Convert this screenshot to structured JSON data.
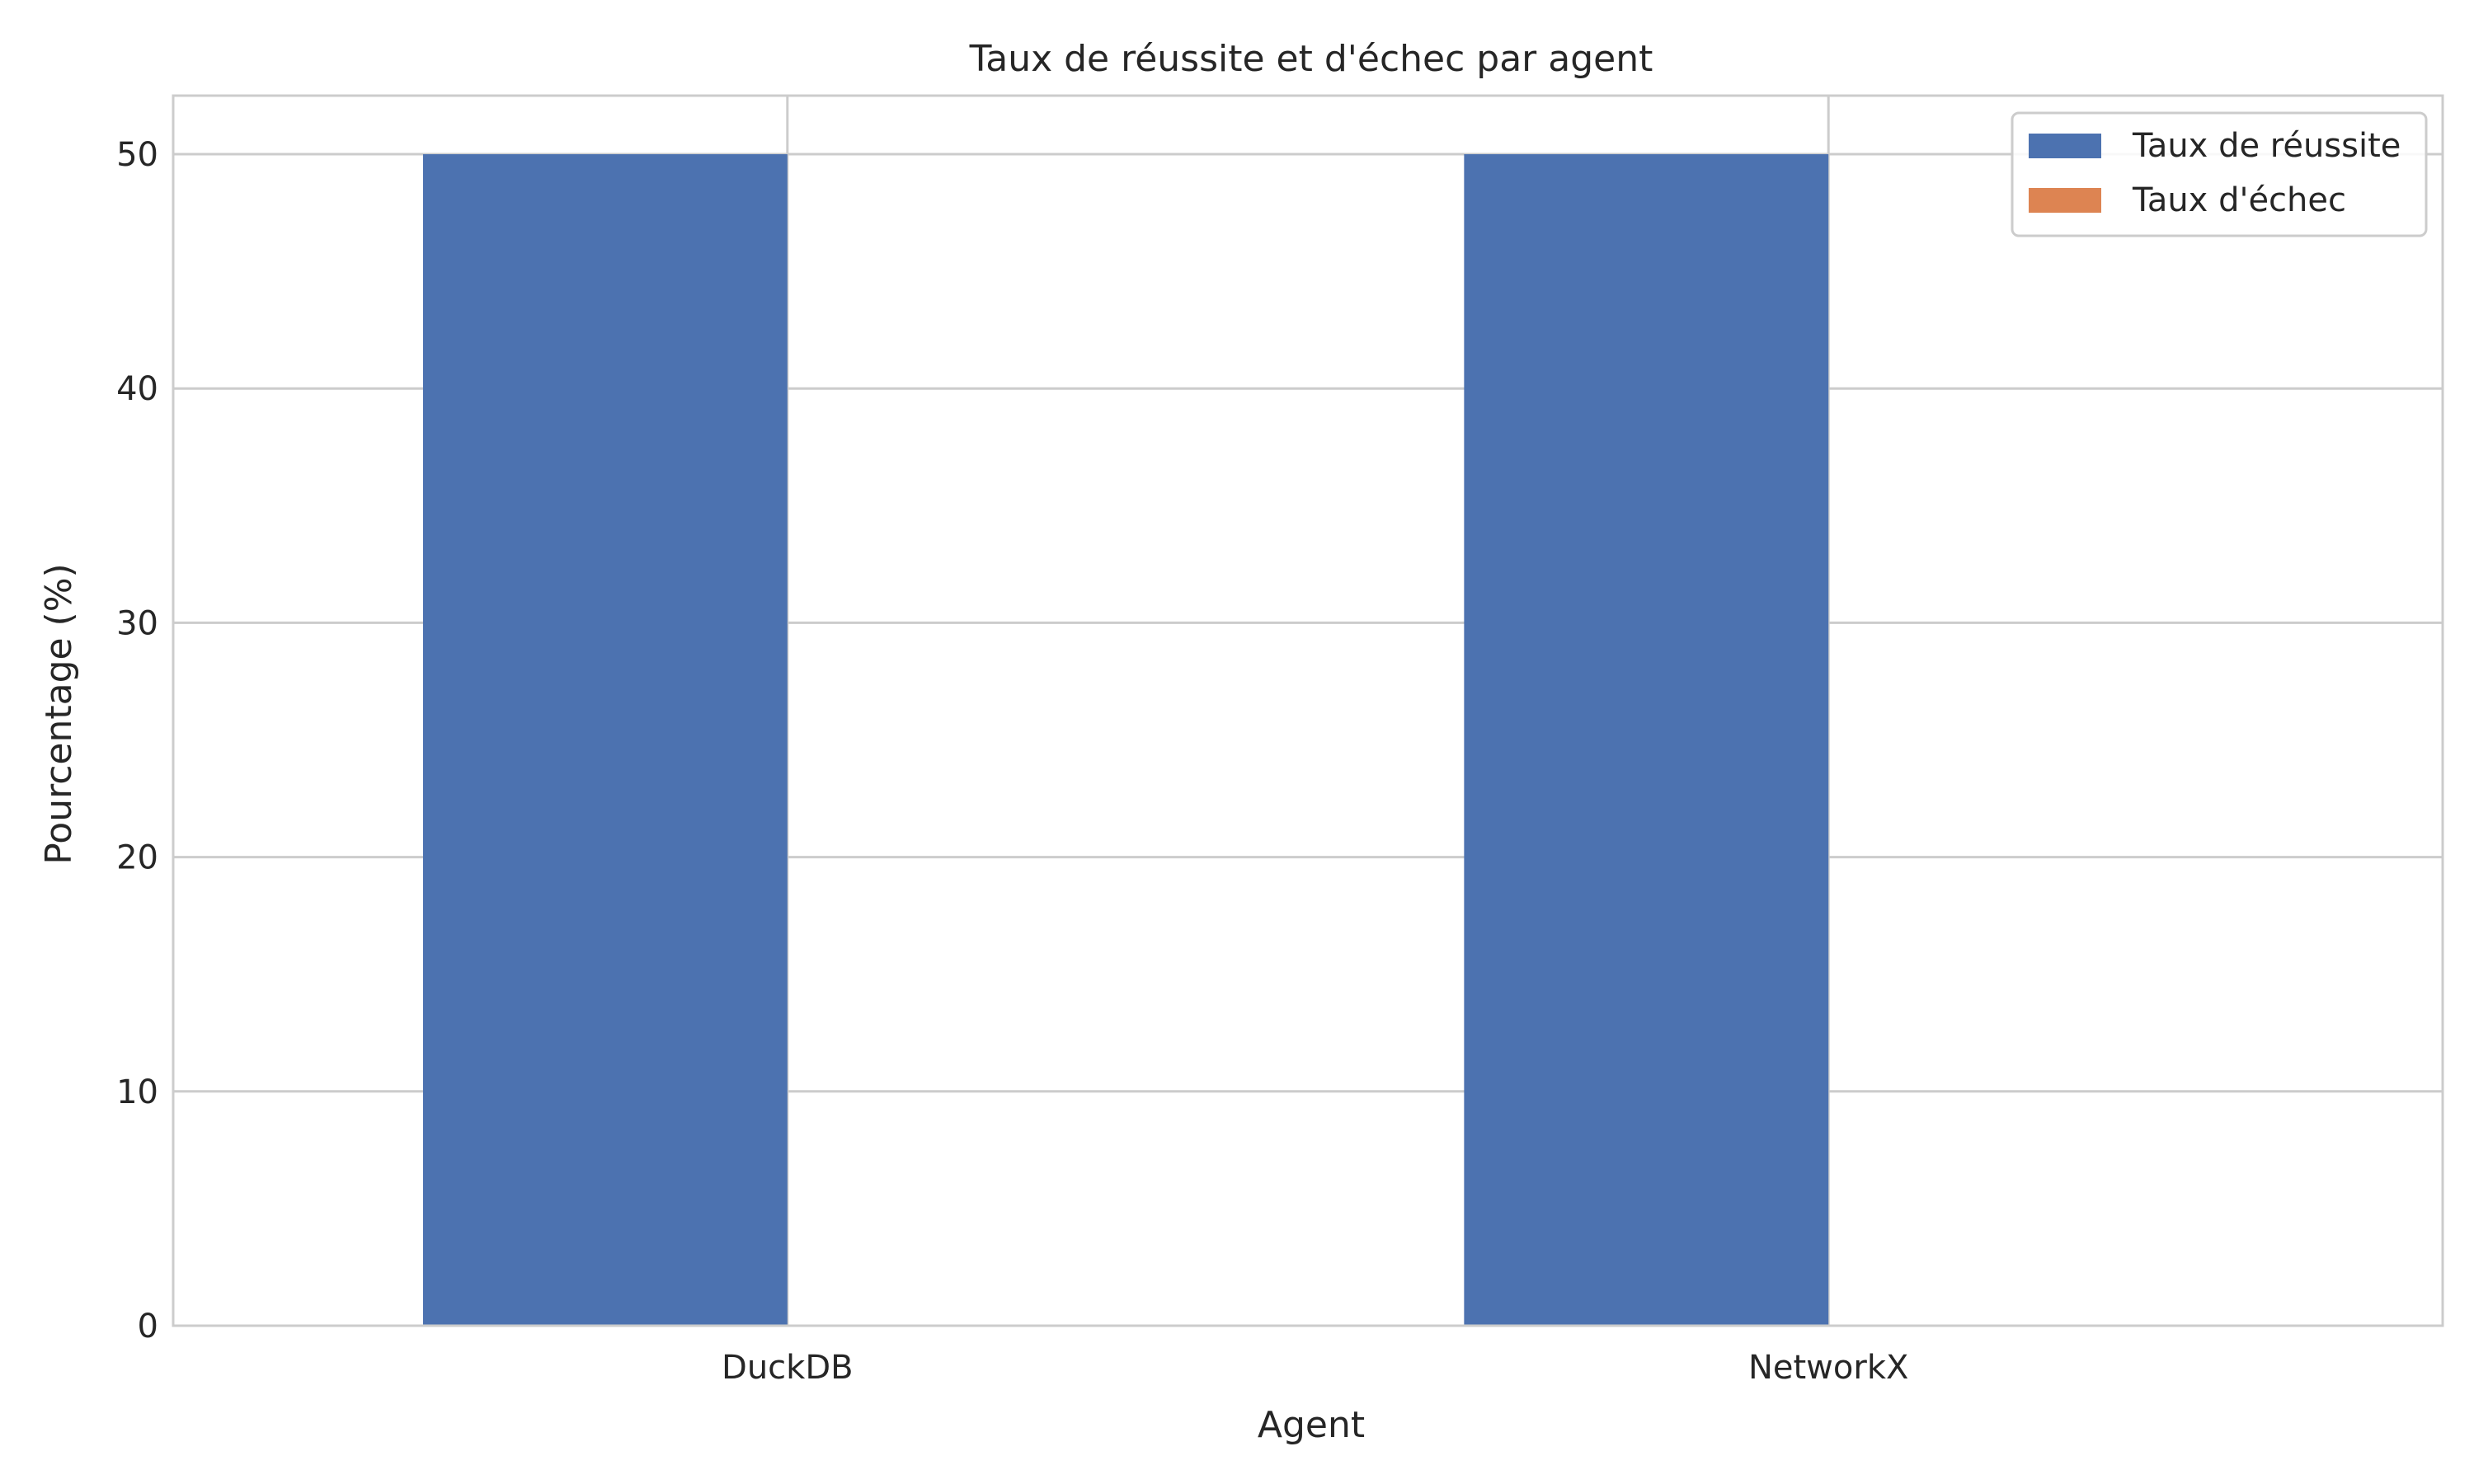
{
  "chart_data": {
    "type": "bar",
    "title": "Taux de réussite et d'échec par agent",
    "xlabel": "Agent",
    "ylabel": "Pourcentage (%)",
    "categories": [
      "DuckDB",
      "NetworkX"
    ],
    "series": [
      {
        "name": "Taux de réussite",
        "color": "#4c72b0",
        "values": [
          50,
          50
        ]
      },
      {
        "name": "Taux d'échec",
        "color": "#dd8452",
        "values": [
          0,
          0
        ]
      }
    ],
    "ylim": [
      0,
      52.5
    ],
    "yticks": [
      0,
      10,
      20,
      30,
      40,
      50
    ],
    "grid": true,
    "legend": "top-right"
  }
}
